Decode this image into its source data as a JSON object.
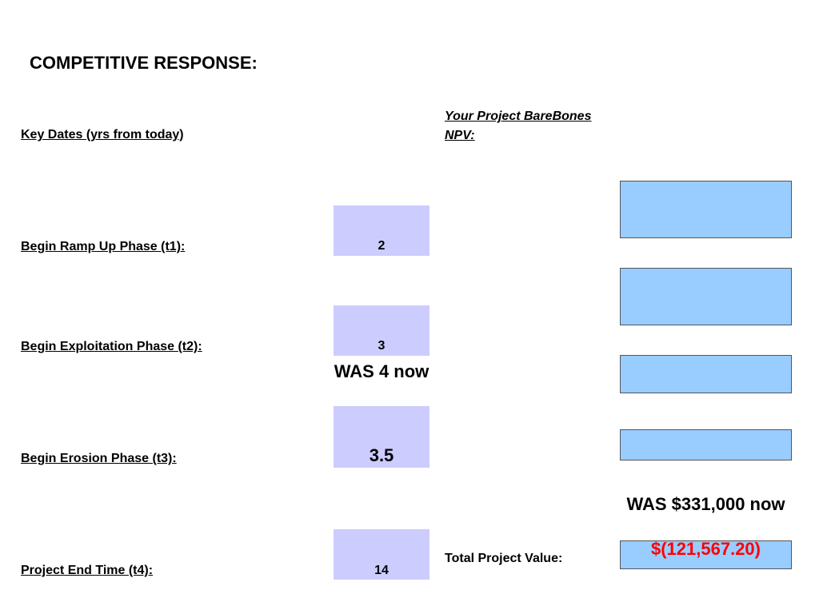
{
  "title": "COMPETITIVE RESPONSE:",
  "key_dates": {
    "header": "Key Dates (yrs from today)",
    "rows": [
      {
        "label": "Begin Ramp Up Phase (t1):",
        "value": "2"
      },
      {
        "label": "Begin Exploitation Phase (t2):",
        "value": "3"
      },
      {
        "label": "Begin Erosion Phase (t3):",
        "value": "3.5"
      },
      {
        "label": "Project End Time (t4):",
        "value": "14"
      }
    ],
    "note": "WAS 4 now"
  },
  "npv": {
    "header": "Your Project BareBones NPV:",
    "note": "WAS $331,000 now",
    "total_label": "Total Project Value:",
    "total_value": "$(121,567.20)"
  },
  "colors": {
    "input_fill": "#ccccff",
    "output_fill": "#99ccff",
    "negative_value": "#ff0000"
  }
}
